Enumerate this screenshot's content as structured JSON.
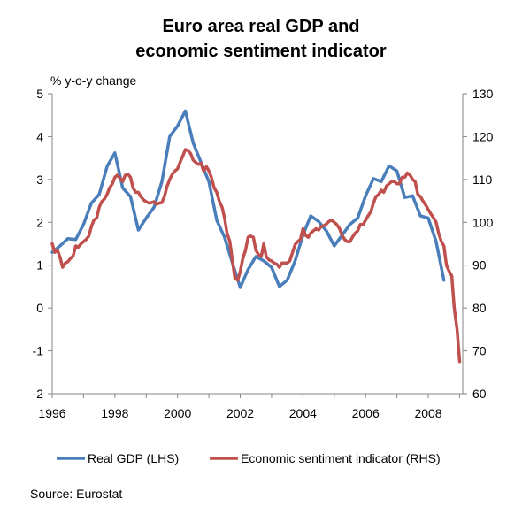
{
  "chart_data": {
    "type": "line",
    "title_line1": "Euro area real GDP and",
    "title_line2": "economic sentiment indicator",
    "ylabel_left": "% y-o-y change",
    "source": "Source: Eurostat",
    "x_ticks": [
      "1996",
      "1998",
      "2000",
      "2002",
      "2004",
      "2006",
      "2008"
    ],
    "xlim": [
      1996,
      2009.1
    ],
    "ylim_left": [
      -2,
      5
    ],
    "ylim_right": [
      60,
      130
    ],
    "y_ticks_left": [
      "5",
      "4",
      "3",
      "2",
      "1",
      "0",
      "-1",
      "-2"
    ],
    "y_ticks_right": [
      "130",
      "120",
      "110",
      "100",
      "90",
      "80",
      "70",
      "60"
    ],
    "grid": false,
    "legend_position": "bottom",
    "series": [
      {
        "name": "Real GDP (LHS)",
        "axis": "left",
        "color": "#4a7ebb",
        "points": [
          [
            1996.0,
            1.3
          ],
          [
            1996.25,
            1.45
          ],
          [
            1996.5,
            1.62
          ],
          [
            1996.75,
            1.6
          ],
          [
            1997.0,
            1.95
          ],
          [
            1997.25,
            2.45
          ],
          [
            1997.5,
            2.65
          ],
          [
            1997.75,
            3.3
          ],
          [
            1998.0,
            3.62
          ],
          [
            1998.25,
            2.8
          ],
          [
            1998.5,
            2.6
          ],
          [
            1998.75,
            1.82
          ],
          [
            1999.0,
            2.1
          ],
          [
            1999.25,
            2.35
          ],
          [
            1999.5,
            2.95
          ],
          [
            1999.75,
            4.0
          ],
          [
            2000.0,
            4.25
          ],
          [
            2000.25,
            4.6
          ],
          [
            2000.5,
            3.85
          ],
          [
            2000.75,
            3.4
          ],
          [
            2001.0,
            2.95
          ],
          [
            2001.25,
            2.05
          ],
          [
            2001.5,
            1.65
          ],
          [
            2001.75,
            1.05
          ],
          [
            2002.0,
            0.48
          ],
          [
            2002.25,
            0.9
          ],
          [
            2002.5,
            1.2
          ],
          [
            2002.75,
            1.1
          ],
          [
            2003.0,
            0.95
          ],
          [
            2003.25,
            0.5
          ],
          [
            2003.5,
            0.65
          ],
          [
            2003.75,
            1.1
          ],
          [
            2004.0,
            1.7
          ],
          [
            2004.25,
            2.15
          ],
          [
            2004.5,
            2.02
          ],
          [
            2004.75,
            1.8
          ],
          [
            2005.0,
            1.45
          ],
          [
            2005.25,
            1.7
          ],
          [
            2005.5,
            1.95
          ],
          [
            2005.75,
            2.1
          ],
          [
            2006.0,
            2.62
          ],
          [
            2006.25,
            3.02
          ],
          [
            2006.5,
            2.95
          ],
          [
            2006.75,
            3.32
          ],
          [
            2007.0,
            3.2
          ],
          [
            2007.25,
            2.58
          ],
          [
            2007.5,
            2.62
          ],
          [
            2007.75,
            2.15
          ],
          [
            2008.0,
            2.1
          ],
          [
            2008.25,
            1.55
          ],
          [
            2008.5,
            0.65
          ]
        ]
      },
      {
        "name": "Economic sentiment indicator (RHS)",
        "axis": "right",
        "color": "#c0504d",
        "points": [
          [
            1996.0,
            95.0
          ],
          [
            1996.08,
            93.0
          ],
          [
            1996.17,
            93.5
          ],
          [
            1996.25,
            91.8
          ],
          [
            1996.33,
            89.5
          ],
          [
            1996.42,
            90.5
          ],
          [
            1996.5,
            90.8
          ],
          [
            1996.58,
            91.5
          ],
          [
            1996.67,
            92.2
          ],
          [
            1996.75,
            94.5
          ],
          [
            1996.83,
            94.2
          ],
          [
            1996.92,
            95.0
          ],
          [
            1997.0,
            95.5
          ],
          [
            1997.08,
            96.0
          ],
          [
            1997.17,
            96.8
          ],
          [
            1997.25,
            99.0
          ],
          [
            1997.33,
            100.5
          ],
          [
            1997.42,
            101.0
          ],
          [
            1997.5,
            103.5
          ],
          [
            1997.58,
            104.8
          ],
          [
            1997.67,
            105.5
          ],
          [
            1997.75,
            106.5
          ],
          [
            1997.83,
            108.0
          ],
          [
            1997.92,
            109.0
          ],
          [
            1998.0,
            110.5
          ],
          [
            1998.08,
            111.0
          ],
          [
            1998.17,
            110.2
          ],
          [
            1998.25,
            109.5
          ],
          [
            1998.33,
            111.0
          ],
          [
            1998.42,
            111.2
          ],
          [
            1998.5,
            110.5
          ],
          [
            1998.58,
            108.0
          ],
          [
            1998.67,
            107.0
          ],
          [
            1998.75,
            107.0
          ],
          [
            1998.83,
            106.0
          ],
          [
            1998.92,
            105.2
          ],
          [
            1999.0,
            104.8
          ],
          [
            1999.08,
            104.5
          ],
          [
            1999.17,
            104.6
          ],
          [
            1999.25,
            104.8
          ],
          [
            1999.33,
            104.2
          ],
          [
            1999.42,
            104.5
          ],
          [
            1999.5,
            104.6
          ],
          [
            1999.58,
            106.0
          ],
          [
            1999.67,
            108.5
          ],
          [
            1999.75,
            110.0
          ],
          [
            1999.83,
            111.2
          ],
          [
            1999.92,
            112.0
          ],
          [
            2000.0,
            112.5
          ],
          [
            2000.08,
            114.0
          ],
          [
            2000.17,
            115.5
          ],
          [
            2000.25,
            117.0
          ],
          [
            2000.33,
            116.8
          ],
          [
            2000.42,
            116.0
          ],
          [
            2000.5,
            114.5
          ],
          [
            2000.58,
            114.0
          ],
          [
            2000.67,
            113.5
          ],
          [
            2000.75,
            113.8
          ],
          [
            2000.83,
            112.0
          ],
          [
            2000.92,
            113.0
          ],
          [
            2001.0,
            112.0
          ],
          [
            2001.08,
            110.5
          ],
          [
            2001.17,
            108.0
          ],
          [
            2001.25,
            107.0
          ],
          [
            2001.33,
            105.0
          ],
          [
            2001.42,
            103.5
          ],
          [
            2001.5,
            101.0
          ],
          [
            2001.58,
            97.5
          ],
          [
            2001.67,
            95.5
          ],
          [
            2001.75,
            91.0
          ],
          [
            2001.83,
            87.0
          ],
          [
            2001.92,
            86.5
          ],
          [
            2002.0,
            88.5
          ],
          [
            2002.08,
            91.5
          ],
          [
            2002.17,
            93.5
          ],
          [
            2002.25,
            96.5
          ],
          [
            2002.33,
            96.8
          ],
          [
            2002.42,
            96.5
          ],
          [
            2002.5,
            93.5
          ],
          [
            2002.58,
            92.5
          ],
          [
            2002.67,
            92.0
          ],
          [
            2002.75,
            95.0
          ],
          [
            2002.83,
            92.0
          ],
          [
            2002.92,
            91.2
          ],
          [
            2003.0,
            91.0
          ],
          [
            2003.08,
            90.5
          ],
          [
            2003.17,
            90.2
          ],
          [
            2003.25,
            89.5
          ],
          [
            2003.33,
            90.5
          ],
          [
            2003.42,
            90.5
          ],
          [
            2003.5,
            90.5
          ],
          [
            2003.58,
            91.0
          ],
          [
            2003.67,
            93.0
          ],
          [
            2003.75,
            94.8
          ],
          [
            2003.83,
            95.5
          ],
          [
            2003.92,
            96.0
          ],
          [
            2004.0,
            98.5
          ],
          [
            2004.08,
            97.0
          ],
          [
            2004.17,
            96.5
          ],
          [
            2004.25,
            97.5
          ],
          [
            2004.33,
            98.0
          ],
          [
            2004.42,
            98.5
          ],
          [
            2004.5,
            98.2
          ],
          [
            2004.58,
            99.0
          ],
          [
            2004.67,
            99.2
          ],
          [
            2004.75,
            99.6
          ],
          [
            2004.83,
            100.2
          ],
          [
            2004.92,
            100.5
          ],
          [
            2005.0,
            100.0
          ],
          [
            2005.08,
            99.5
          ],
          [
            2005.17,
            98.5
          ],
          [
            2005.25,
            97.0
          ],
          [
            2005.33,
            96.0
          ],
          [
            2005.42,
            95.5
          ],
          [
            2005.5,
            95.5
          ],
          [
            2005.58,
            96.5
          ],
          [
            2005.67,
            97.5
          ],
          [
            2005.75,
            98.0
          ],
          [
            2005.83,
            99.5
          ],
          [
            2005.92,
            99.5
          ],
          [
            2006.0,
            100.5
          ],
          [
            2006.08,
            101.5
          ],
          [
            2006.17,
            102.5
          ],
          [
            2006.25,
            104.5
          ],
          [
            2006.33,
            106.0
          ],
          [
            2006.42,
            106.5
          ],
          [
            2006.5,
            107.5
          ],
          [
            2006.58,
            107.0
          ],
          [
            2006.67,
            108.5
          ],
          [
            2006.75,
            109.0
          ],
          [
            2006.83,
            109.5
          ],
          [
            2006.92,
            109.5
          ],
          [
            2007.0,
            109.0
          ],
          [
            2007.08,
            109.0
          ],
          [
            2007.17,
            110.5
          ],
          [
            2007.25,
            110.5
          ],
          [
            2007.33,
            111.5
          ],
          [
            2007.42,
            111.0
          ],
          [
            2007.5,
            110.0
          ],
          [
            2007.58,
            109.5
          ],
          [
            2007.67,
            106.5
          ],
          [
            2007.75,
            106.0
          ],
          [
            2007.83,
            105.0
          ],
          [
            2007.92,
            104.0
          ],
          [
            2008.0,
            103.0
          ],
          [
            2008.08,
            102.0
          ],
          [
            2008.17,
            101.0
          ],
          [
            2008.25,
            100.0
          ],
          [
            2008.33,
            97.5
          ],
          [
            2008.42,
            95.5
          ],
          [
            2008.5,
            94.5
          ],
          [
            2008.58,
            90.0
          ],
          [
            2008.67,
            88.5
          ],
          [
            2008.75,
            87.5
          ],
          [
            2008.83,
            80.0
          ],
          [
            2008.92,
            75.0
          ],
          [
            2009.0,
            67.5
          ]
        ]
      }
    ]
  }
}
